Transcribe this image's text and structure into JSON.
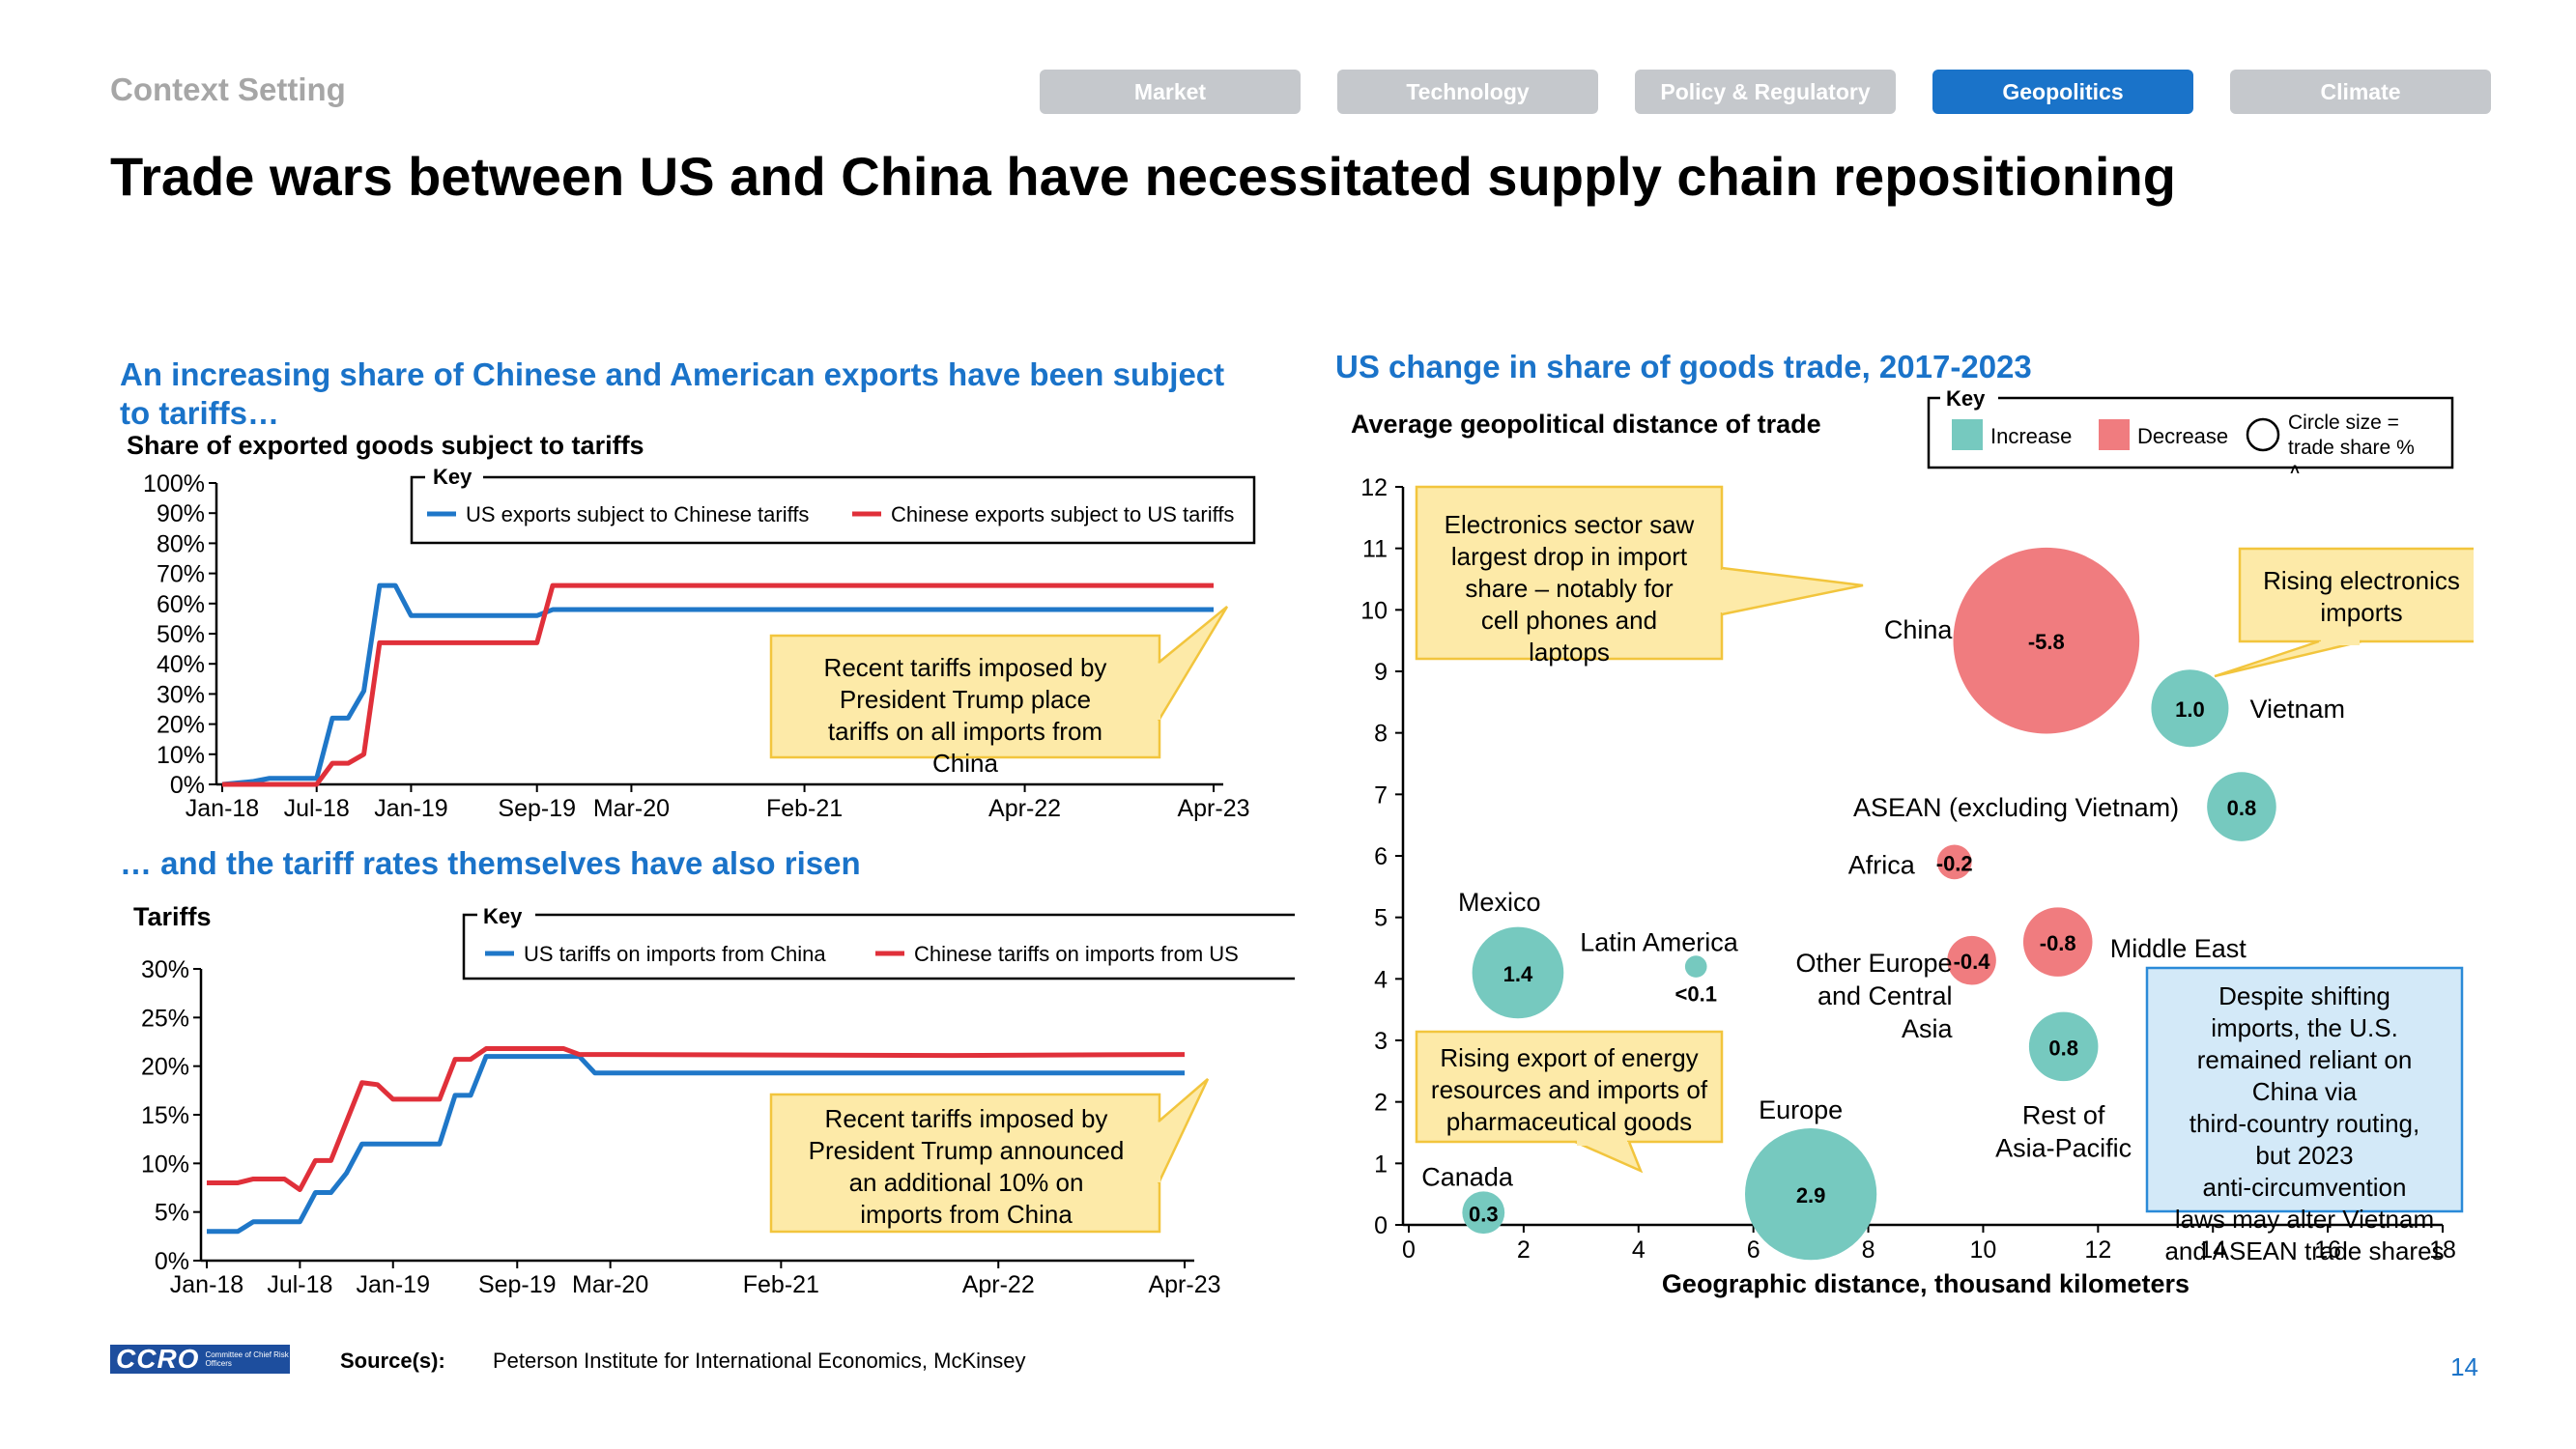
{
  "header": {
    "context_label": "Context Setting",
    "tabs": [
      {
        "label": "Market",
        "active": false
      },
      {
        "label": "Technology",
        "active": false
      },
      {
        "label": "Policy & Regulatory",
        "active": false
      },
      {
        "label": "Geopolitics",
        "active": true
      },
      {
        "label": "Climate",
        "active": false
      }
    ],
    "title": "Trade wars between US and China have necessitated supply chain repositioning"
  },
  "left_top": {
    "section_title": "An increasing share of Chinese and American exports have been subject to tariffs…",
    "subtitle": "Share of exported goods subject to tariffs",
    "key_label": "Key",
    "callout": "Recent tariffs imposed by President Trump place tariffs on all imports from China"
  },
  "left_bottom": {
    "section_title": "… and the tariff rates themselves have also risen",
    "subtitle": "Tariffs",
    "key_label": "Key",
    "callout": "Recent tariffs imposed by President Trump announced an additional 10% on imports from China"
  },
  "right": {
    "section_title": "US change in share of goods trade, 2017-2023",
    "key_label": "Key",
    "key_increase": "Increase",
    "key_decrease": "Decrease",
    "key_circle": "Circle size = trade share % Δ",
    "callout_electronics": "Electronics sector saw largest drop in import share – notably for cell phones and laptops",
    "callout_rising": "Rising electronics imports",
    "callout_energy": "Rising export of energy resources and imports of pharmaceutical goods",
    "callout_routing": "Despite shifting imports, the U.S. remained reliant on China via third-country routing, but 2023 anti-circumvention laws may alter Vietnam and ASEAN trade shares"
  },
  "footer": {
    "source_label": "Source(s):",
    "source_text": "Peterson Institute for International Economics, McKinsey",
    "page_number": "14",
    "logo_text": "CCRO",
    "logo_sub": "Committee of Chief Risk Officers"
  },
  "colors": {
    "blue": "#1f77c8",
    "red": "#e0303a",
    "increase": "#76c9bf",
    "decrease": "#f07c7f",
    "accent": "#1a73c9",
    "callout_fill": "#fdeaa8",
    "callout_border": "#f2c53d",
    "callout_blue_fill": "#d3e9f8",
    "callout_blue_border": "#2a8ad8"
  },
  "chart_data": [
    {
      "type": "line",
      "ylabel": "Share of exported goods subject to tariffs",
      "ylim": [
        0,
        100
      ],
      "y_ticks": [
        "0%",
        "10%",
        "20%",
        "30%",
        "40%",
        "50%",
        "60%",
        "70%",
        "80%",
        "90%",
        "100%"
      ],
      "x_ticks": [
        "Jan-18",
        "Jul-18",
        "Jan-19",
        "Sep-19",
        "Mar-20",
        "Feb-21",
        "Apr-22",
        "Apr-23"
      ],
      "legend": "top",
      "series": [
        {
          "name": "US exports subject to Chinese tariffs",
          "x": [
            "Jan-18",
            "Mar-18",
            "Apr-18",
            "Jul-18",
            "Aug-18",
            "Sep-18",
            "Oct-18",
            "Nov-18",
            "Dec-18",
            "Jan-19",
            "Feb-19",
            "Sep-19",
            "Oct-19",
            "Apr-23"
          ],
          "values": [
            0,
            1,
            2,
            2,
            22,
            22,
            31,
            66,
            66,
            56,
            56,
            56,
            58,
            58
          ]
        },
        {
          "name": "Chinese exports subject to US tariffs",
          "x": [
            "Jan-18",
            "Apr-18",
            "Jul-18",
            "Aug-18",
            "Sep-18",
            "Oct-18",
            "Nov-18",
            "Dec-18",
            "Jan-19",
            "Feb-19",
            "Aug-19",
            "Sep-19",
            "Oct-19",
            "Apr-23"
          ],
          "values": [
            0,
            0,
            0,
            7,
            7,
            10,
            47,
            47,
            47,
            47,
            47,
            47,
            66,
            66
          ]
        }
      ]
    },
    {
      "type": "line",
      "ylabel": "Tariffs",
      "ylim": [
        0,
        30
      ],
      "y_ticks": [
        "0%",
        "5%",
        "10%",
        "15%",
        "20%",
        "25%",
        "30%"
      ],
      "x_ticks": [
        "Jan-18",
        "Jul-18",
        "Jan-19",
        "Sep-19",
        "Mar-20",
        "Feb-21",
        "Apr-22",
        "Apr-23"
      ],
      "legend": "top",
      "series": [
        {
          "name": "US tariffs on imports from China",
          "x": [
            "Jan-18",
            "Mar-18",
            "Apr-18",
            "May-18",
            "Jun-18",
            "Jul-18",
            "Aug-18",
            "Sep-18",
            "Oct-18",
            "Nov-18",
            "Dec-18",
            "Jan-19",
            "Feb-19",
            "Mar-19",
            "Apr-19",
            "May-19",
            "Jun-19",
            "Jul-19",
            "Aug-19",
            "Sep-19",
            "Oct-19",
            "Nov-19",
            "Dec-19",
            "Jan-20",
            "Feb-20",
            "Apr-23"
          ],
          "values": [
            3,
            3,
            4,
            4,
            4,
            4,
            7,
            7,
            9,
            12,
            12,
            12,
            12,
            12,
            12,
            17,
            17,
            21,
            21,
            21,
            21,
            21,
            21,
            21,
            19.3,
            19.3
          ]
        },
        {
          "name": "Chinese tariffs on imports from US",
          "x": [
            "Jan-18",
            "Mar-18",
            "Apr-18",
            "May-18",
            "Jun-18",
            "Jul-18",
            "Aug-18",
            "Sep-18",
            "Oct-18",
            "Nov-18",
            "Dec-18",
            "Jan-19",
            "Feb-19",
            "Mar-19",
            "Apr-19",
            "May-19",
            "Jun-19",
            "Jul-19",
            "Aug-19",
            "Sep-19",
            "Oct-19",
            "Nov-19",
            "Dec-19",
            "Jan-20",
            "Feb-20",
            "Jan-22",
            "Apr-23"
          ],
          "values": [
            8,
            8,
            8.4,
            8.4,
            8.4,
            7.3,
            10.3,
            10.3,
            14.3,
            18.3,
            18.1,
            16.6,
            16.6,
            16.6,
            16.6,
            20.7,
            20.7,
            21.8,
            21.8,
            21.8,
            21.8,
            21.8,
            21.8,
            21.2,
            21.2,
            21.1,
            21.2
          ]
        }
      ]
    },
    {
      "type": "scatter",
      "title": "US change in share of goods trade, 2017-2023",
      "xlabel": "Geographic distance, thousand kilometers",
      "ylabel": "Average geopolitical distance of trade",
      "xlim": [
        0,
        18
      ],
      "ylim": [
        0,
        12
      ],
      "x_ticks": [
        "0",
        "2",
        "4",
        "6",
        "8",
        "10",
        "12",
        "14",
        "16",
        "18"
      ],
      "y_ticks": [
        "0",
        "1",
        "2",
        "3",
        "4",
        "5",
        "6",
        "7",
        "8",
        "9",
        "10",
        "11",
        "12"
      ],
      "points": [
        {
          "name": "China",
          "x": 11.1,
          "y": 9.5,
          "value": "-5.8",
          "size": 5.8,
          "direction": "decrease"
        },
        {
          "name": "Vietnam",
          "x": 13.6,
          "y": 8.4,
          "value": "1.0",
          "size": 1.0,
          "direction": "increase"
        },
        {
          "name": "ASEAN (excluding Vietnam)",
          "x": 14.5,
          "y": 6.8,
          "value": "0.8",
          "size": 0.8,
          "direction": "increase"
        },
        {
          "name": "Africa",
          "x": 9.5,
          "y": 5.9,
          "value": "-0.2",
          "size": 0.2,
          "direction": "decrease"
        },
        {
          "name": "Mexico",
          "x": 1.9,
          "y": 4.1,
          "value": "1.4",
          "size": 1.4,
          "direction": "increase"
        },
        {
          "name": "Latin America",
          "x": 5.0,
          "y": 4.2,
          "value": "<0.1",
          "size": 0.08,
          "direction": "increase"
        },
        {
          "name": "Other Europe and Central Asia",
          "x": 9.8,
          "y": 4.3,
          "value": "-0.4",
          "size": 0.4,
          "direction": "decrease"
        },
        {
          "name": "Middle East",
          "x": 11.3,
          "y": 4.6,
          "value": "-0.8",
          "size": 0.8,
          "direction": "decrease"
        },
        {
          "name": "Rest of Asia-Pacific",
          "x": 11.4,
          "y": 2.9,
          "value": "0.8",
          "size": 0.8,
          "direction": "increase"
        },
        {
          "name": "Europe",
          "x": 7.0,
          "y": 0.5,
          "value": "2.9",
          "size": 2.9,
          "direction": "increase"
        },
        {
          "name": "Canada",
          "x": 1.3,
          "y": 0.2,
          "value": "0.3",
          "size": 0.3,
          "direction": "increase"
        }
      ]
    }
  ]
}
